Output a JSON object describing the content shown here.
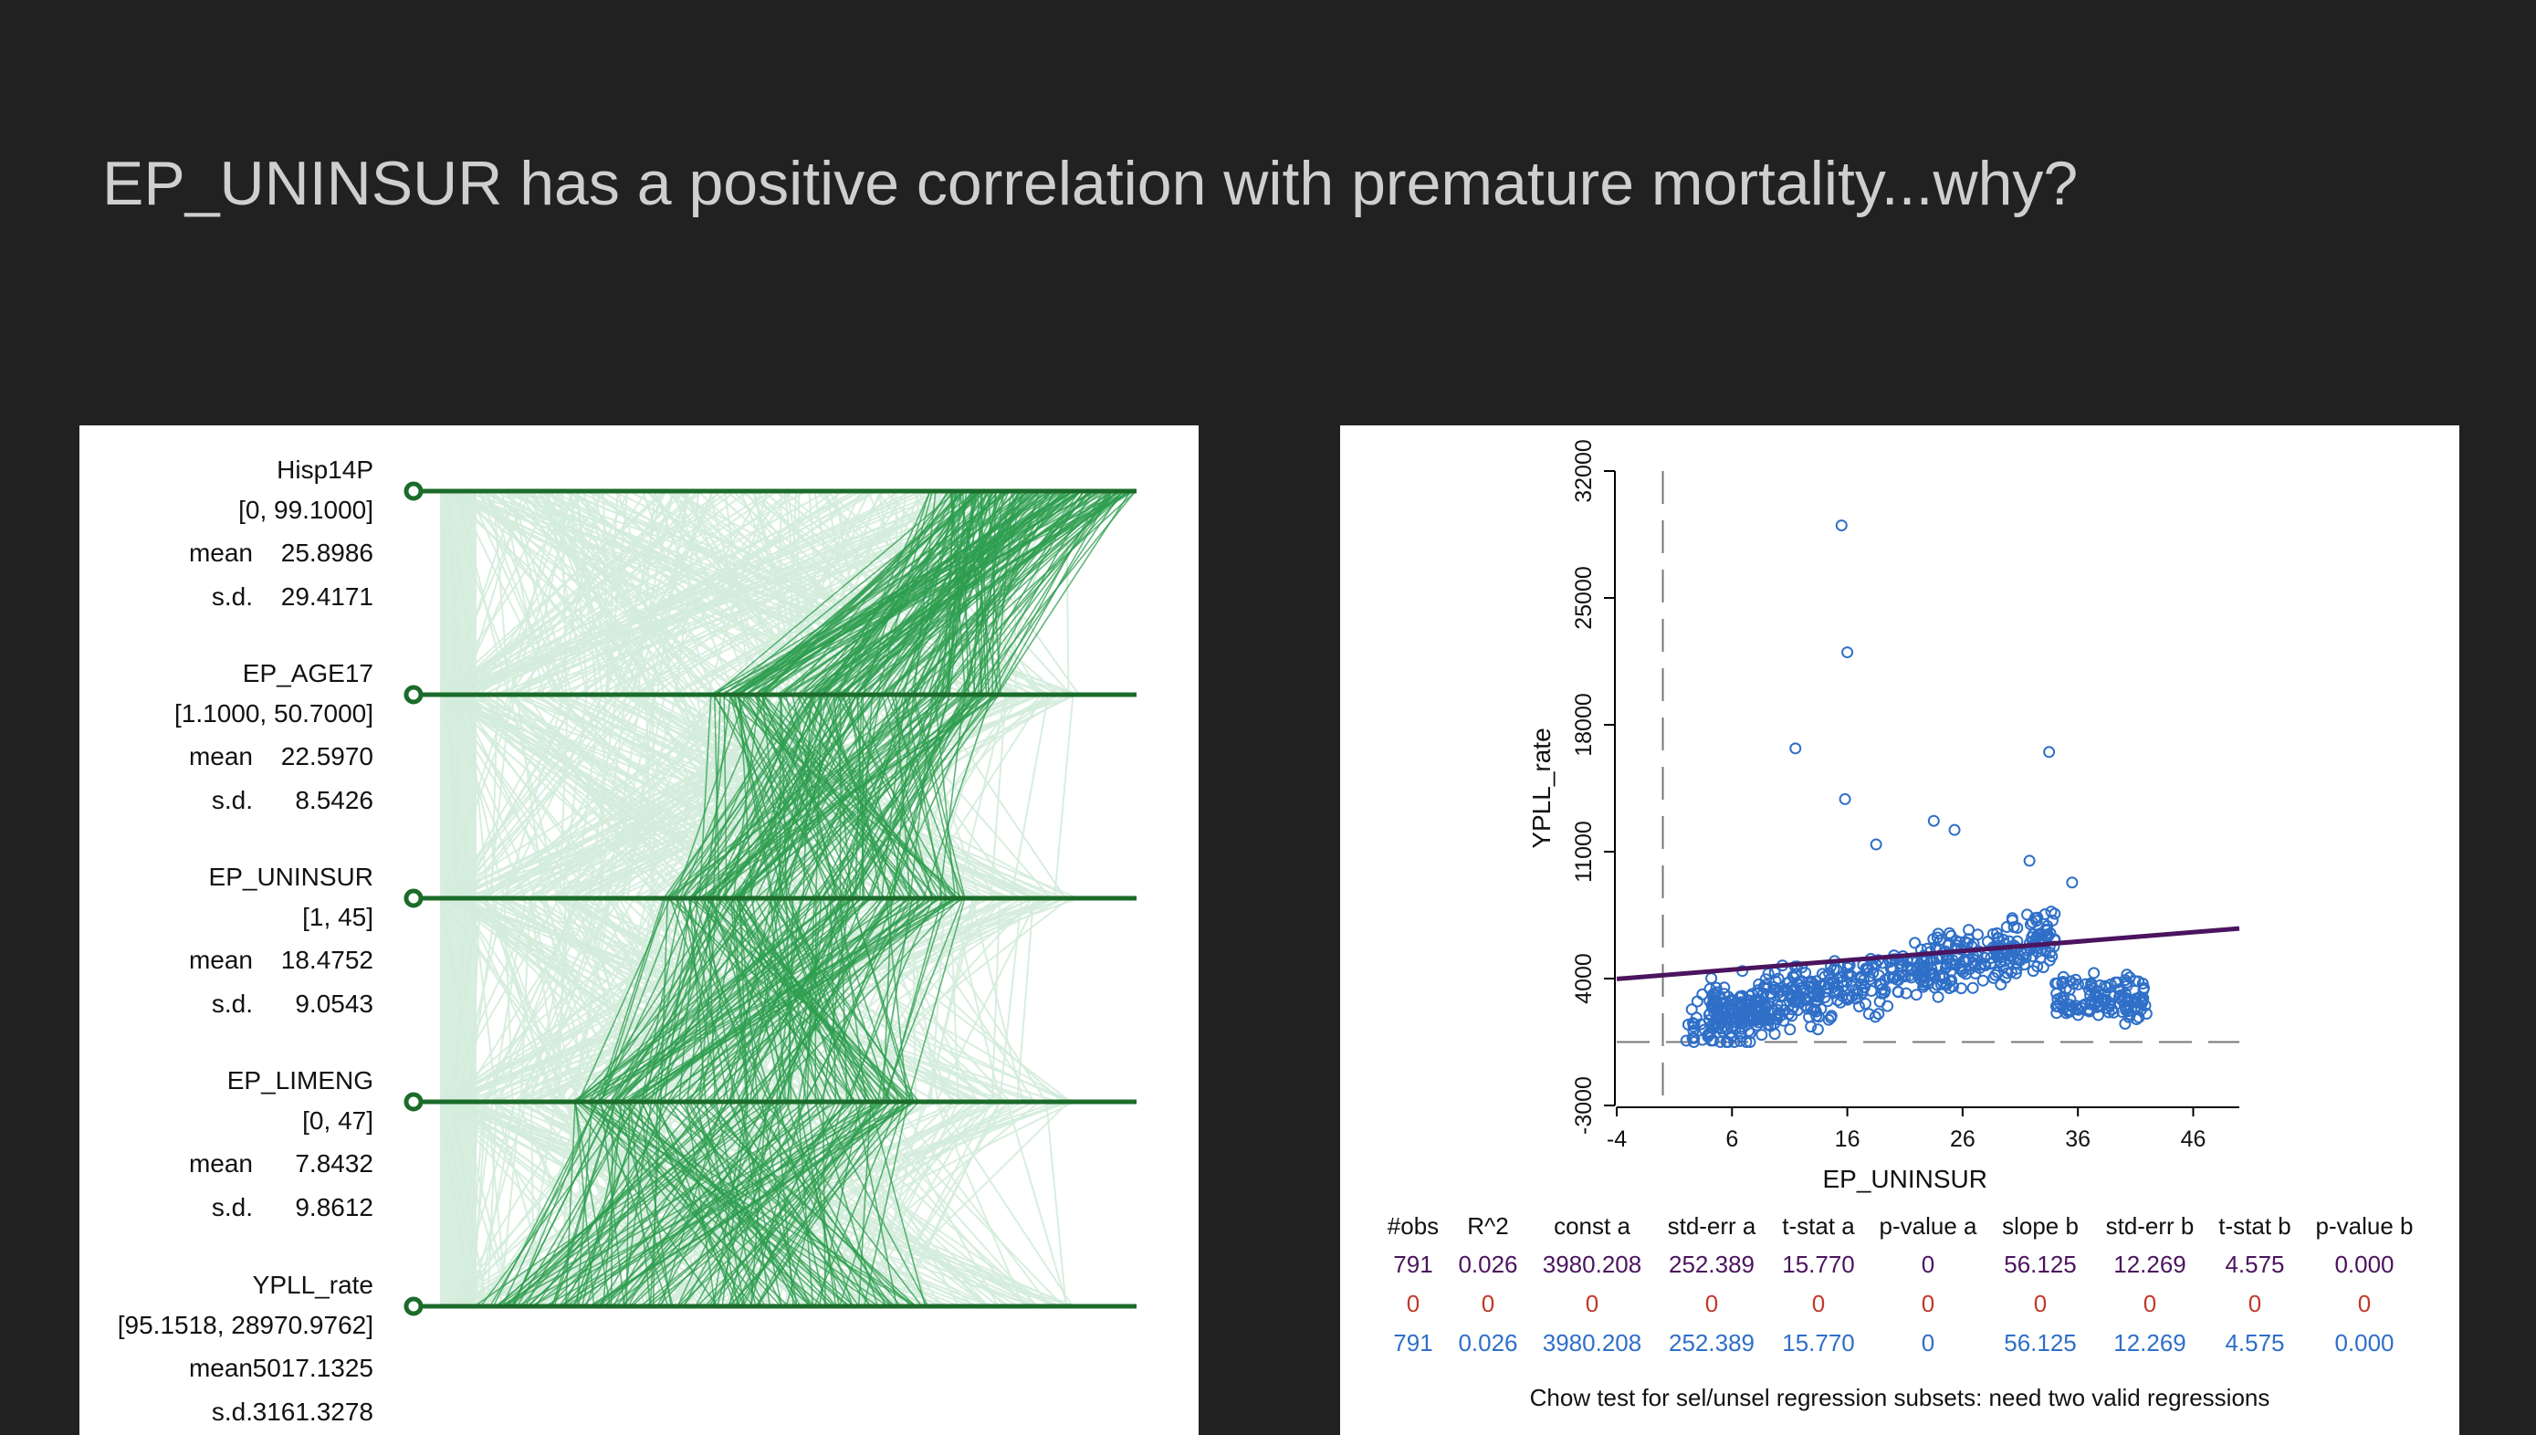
{
  "slide_title": "EP_UNINSUR has a positive correlation with premature mortality...why?",
  "colors": {
    "background": "#212121",
    "title": "#cfcfcf",
    "pcp_axis": "#1b6b2a",
    "pcp_selected": "#2e9e4f",
    "pcp_unselected": "#d4ecdc",
    "scatter_point": "#2f6fc8",
    "regression_line": "#4b145e",
    "row_all": "#4b145e",
    "row_selected": "#c0392b",
    "row_unselected": "#2f6fc8"
  },
  "pcp": {
    "variables": [
      {
        "name": "Hisp14P",
        "range": "[0, 99.1000]",
        "mean_label": "mean",
        "mean": "25.8986",
        "sd_label": "s.d.",
        "sd": "29.4171"
      },
      {
        "name": "EP_AGE17",
        "range": "[1.1000, 50.7000]",
        "mean_label": "mean",
        "mean": "22.5970",
        "sd_label": "s.d.",
        "sd": "8.5426"
      },
      {
        "name": "EP_UNINSUR",
        "range": "[1, 45]",
        "mean_label": "mean",
        "mean": "18.4752",
        "sd_label": "s.d.",
        "sd": "9.0543"
      },
      {
        "name": "EP_LIMENG",
        "range": "[0, 47]",
        "mean_label": "mean",
        "mean": "7.8432",
        "sd_label": "s.d.",
        "sd": "9.8612"
      },
      {
        "name": "YPLL_rate",
        "range": "[95.1518, 28970.9762]",
        "mean_label": "mean",
        "mean": "5017.1325",
        "sd_label": "s.d.",
        "sd": "3161.3278"
      }
    ]
  },
  "chart_data": [
    {
      "type": "parallel_coordinates",
      "axes": [
        "Hisp14P",
        "EP_AGE17",
        "EP_UNINSUR",
        "EP_LIMENG",
        "YPLL_rate"
      ],
      "orientation": "horizontal axes stacked vertically",
      "selection": "high Hisp14P counties highlighted"
    },
    {
      "type": "scatter",
      "xlabel": "EP_UNINSUR",
      "ylabel": "YPLL_rate",
      "xticks": [
        "-4",
        "6",
        "16",
        "26",
        "36",
        "46"
      ],
      "yticks": [
        "-3000",
        "4000",
        "11000",
        "18000",
        "25000",
        "32000"
      ],
      "xlim": [
        -4,
        50
      ],
      "ylim": [
        -3000,
        32000
      ],
      "regression": {
        "intercept": 3980.208,
        "slope": 56.125
      },
      "outliers": [
        {
          "x": 15.5,
          "y": 29000
        },
        {
          "x": 16,
          "y": 22000
        },
        {
          "x": 11.5,
          "y": 16700
        },
        {
          "x": 33.5,
          "y": 16500
        },
        {
          "x": 15.8,
          "y": 13900
        },
        {
          "x": 23.5,
          "y": 12700
        },
        {
          "x": 25.3,
          "y": 12200
        },
        {
          "x": 18.5,
          "y": 11400
        },
        {
          "x": 31.8,
          "y": 10500
        },
        {
          "x": 35.5,
          "y": 9300
        }
      ],
      "point_cloud": {
        "n": 791,
        "x_range": [
          1,
          45
        ],
        "y_range": [
          300,
          11000
        ]
      },
      "dashed_guides": {
        "x": 0,
        "y": 500
      }
    }
  ],
  "regression_table": {
    "headers": [
      "#obs",
      "R^2",
      "const a",
      "std-err a",
      "t-stat a",
      "p-value a",
      "slope b",
      "std-err b",
      "t-stat b",
      "p-value b"
    ],
    "rows": [
      [
        "791",
        "0.026",
        "3980.208",
        "252.389",
        "15.770",
        "0",
        "56.125",
        "12.269",
        "4.575",
        "0.000"
      ],
      [
        "0",
        "0",
        "0",
        "0",
        "0",
        "0",
        "0",
        "0",
        "0",
        "0"
      ],
      [
        "791",
        "0.026",
        "3980.208",
        "252.389",
        "15.770",
        "0",
        "56.125",
        "12.269",
        "4.575",
        "0.000"
      ]
    ],
    "footer": "Chow test for sel/unsel regression subsets: need two valid regressions"
  }
}
